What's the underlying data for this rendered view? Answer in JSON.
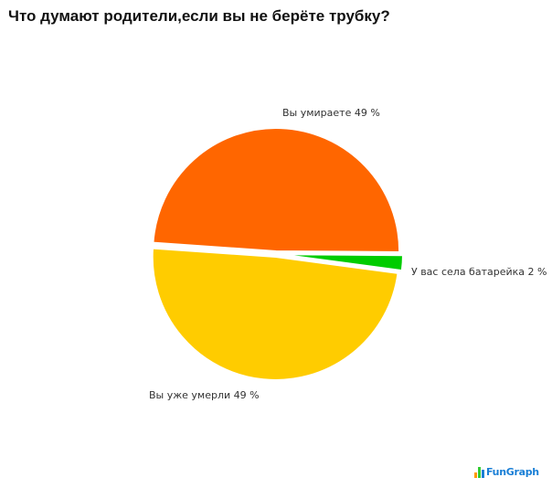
{
  "chart_data": {
    "type": "pie",
    "title": "Что думают родители,если вы не берёте трубку?",
    "categories": [
      "Вы умираете",
      "У вас села батарейка",
      "Вы уже умерли"
    ],
    "values": [
      49,
      2,
      49
    ],
    "unit": "%",
    "colors": [
      "#ff6600",
      "#00cc00",
      "#ffcc00"
    ],
    "labels": [
      "Вы умираете 49 %",
      "У вас села батарейка 2 %",
      "Вы уже умерли 49 %"
    ],
    "legend": "none (inline labels)"
  },
  "header": {
    "title": "Что думают родители,если вы не берёте трубку?"
  },
  "labels": {
    "slice_1": "Вы умираете 49 %",
    "slice_2": "У вас села батарейка 2 %",
    "slice_3": "Вы уже умерли 49 %"
  },
  "branding": {
    "logo_text": "FunGraph",
    "logo_bar_colors": [
      "#ff9900",
      "#33cc33",
      "#1a7fd6"
    ]
  }
}
